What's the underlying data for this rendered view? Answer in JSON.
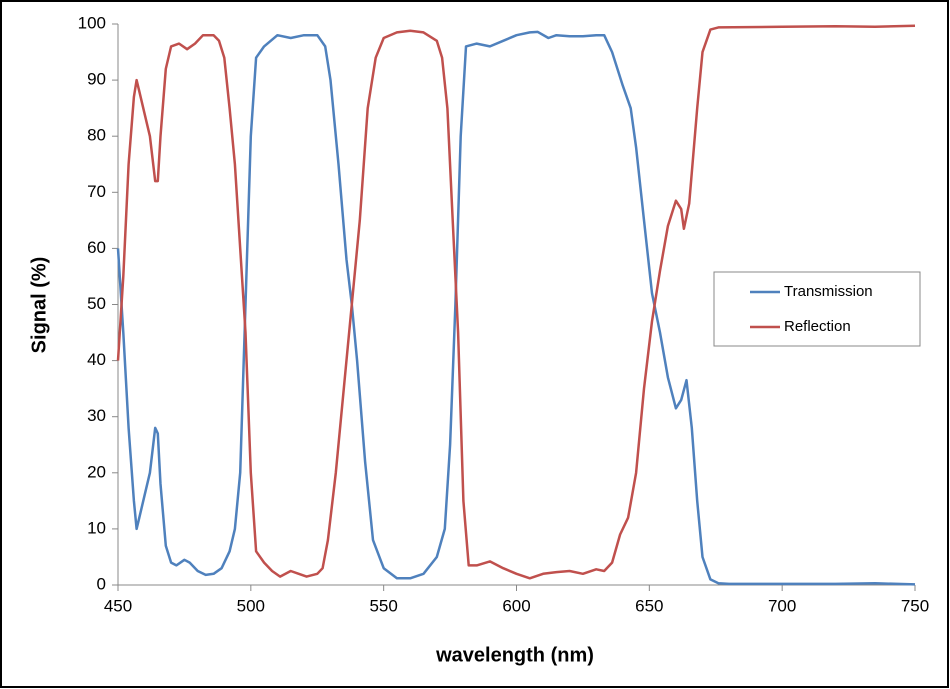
{
  "chart_data": {
    "type": "line",
    "x_label": "wavelength (nm)",
    "y_label": "Signal (%)",
    "xlim": [
      450,
      750
    ],
    "xticks": [
      450,
      500,
      550,
      600,
      650,
      700,
      750
    ],
    "ylim": [
      0,
      100
    ],
    "yticks": [
      0,
      10,
      20,
      30,
      40,
      50,
      60,
      70,
      80,
      90,
      100
    ],
    "grid": false,
    "legend": "right",
    "series": [
      {
        "name": "Transmission",
        "color": "#4f81bd",
        "x": [
          450,
          452,
          454,
          456,
          457,
          458,
          460,
          462,
          464,
          465,
          466,
          468,
          470,
          472,
          475,
          477,
          480,
          483,
          486,
          489,
          492,
          494,
          496,
          498,
          500,
          502,
          505,
          510,
          515,
          520,
          525,
          528,
          530,
          533,
          536,
          538,
          540,
          543,
          546,
          550,
          555,
          560,
          565,
          570,
          573,
          575,
          577,
          579,
          581,
          585,
          590,
          595,
          600,
          605,
          608,
          612,
          615,
          620,
          625,
          630,
          633,
          636,
          640,
          643,
          645,
          648,
          651,
          654,
          657,
          660,
          662,
          664,
          666,
          668,
          670,
          673,
          676,
          680,
          700,
          720,
          735,
          750
        ],
        "values": [
          60,
          45,
          28,
          15,
          10,
          12,
          16,
          20,
          28,
          27,
          18,
          7,
          4,
          3.5,
          4.5,
          4,
          2.5,
          1.8,
          2,
          3,
          6,
          10,
          20,
          50,
          80,
          94,
          96,
          98,
          97.5,
          98,
          98,
          96,
          90,
          75,
          58,
          50,
          40,
          22,
          8,
          3,
          1.2,
          1.2,
          2,
          5,
          10,
          25,
          50,
          80,
          96,
          96.5,
          96,
          97,
          98,
          98.5,
          98.6,
          97.5,
          98,
          97.8,
          97.8,
          98,
          98,
          95,
          89,
          85,
          78,
          65,
          52,
          45,
          37,
          31.5,
          33,
          36.5,
          28,
          15,
          5,
          1,
          0.3,
          0.2,
          0.2,
          0.2,
          0.3,
          0.1
        ]
      },
      {
        "name": "Reflection",
        "color": "#c0504d",
        "x": [
          450,
          452,
          454,
          456,
          457,
          458,
          460,
          462,
          464,
          465,
          466,
          468,
          470,
          473,
          476,
          479,
          482,
          486,
          488,
          490,
          492,
          494,
          496,
          498,
          500,
          502,
          505,
          508,
          511,
          515,
          518,
          521,
          525,
          527,
          529,
          532,
          535,
          538,
          541,
          544,
          547,
          550,
          555,
          560,
          565,
          570,
          572,
          574,
          576,
          578,
          580,
          582,
          585,
          590,
          595,
          600,
          605,
          610,
          615,
          620,
          625,
          630,
          633,
          636,
          639,
          642,
          645,
          648,
          651,
          654,
          657,
          660,
          662,
          663,
          665,
          668,
          670,
          673,
          676,
          700,
          720,
          735,
          750
        ],
        "values": [
          40,
          55,
          75,
          87,
          90,
          88,
          84,
          80,
          72,
          72,
          80,
          92,
          96,
          96.5,
          95.5,
          96.5,
          98,
          98,
          97,
          94,
          85,
          75,
          60,
          45,
          20,
          6,
          4,
          2.5,
          1.5,
          2.5,
          2,
          1.5,
          2,
          3,
          8,
          20,
          35,
          50,
          65,
          85,
          94,
          97.5,
          98.5,
          98.8,
          98.5,
          97,
          94,
          85,
          65,
          45,
          15,
          3.5,
          3.5,
          4.2,
          3,
          2,
          1.2,
          2,
          2.3,
          2.5,
          2,
          2.8,
          2.5,
          4,
          9,
          12,
          20,
          35,
          47,
          56,
          64,
          68.5,
          67,
          63.5,
          68,
          85,
          95,
          99,
          99.4,
          99.5,
          99.6,
          99.5,
          99.7
        ]
      }
    ]
  }
}
